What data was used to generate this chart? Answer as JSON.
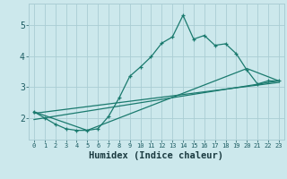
{
  "xlabel": "Humidex (Indice chaleur)",
  "ylabel": "",
  "bg_color": "#cce8ec",
  "line_color": "#1a7a6e",
  "grid_color": "#aacdd4",
  "xlim": [
    -0.5,
    23.5
  ],
  "ylim": [
    1.3,
    5.7
  ],
  "yticks": [
    2,
    3,
    4,
    5
  ],
  "xticks": [
    0,
    1,
    2,
    3,
    4,
    5,
    6,
    7,
    8,
    9,
    10,
    11,
    12,
    13,
    14,
    15,
    16,
    17,
    18,
    19,
    20,
    21,
    22,
    23
  ],
  "xtick_labels": [
    "0",
    "1",
    "2",
    "3",
    "4",
    "5",
    "6",
    "7",
    "8",
    "9",
    "10",
    "11",
    "12",
    "13",
    "14",
    "15",
    "16",
    "17",
    "18",
    "19",
    "20",
    "21",
    "22",
    "23"
  ],
  "series1_x": [
    0,
    1,
    2,
    3,
    4,
    5,
    6,
    7,
    8,
    9,
    10,
    11,
    12,
    13,
    14,
    15,
    16,
    17,
    18,
    19,
    20,
    21,
    22,
    23
  ],
  "series1_y": [
    2.2,
    2.0,
    1.8,
    1.65,
    1.6,
    1.6,
    1.65,
    2.05,
    2.65,
    3.35,
    3.65,
    3.98,
    4.42,
    4.62,
    5.32,
    4.55,
    4.67,
    4.35,
    4.4,
    4.08,
    3.55,
    3.1,
    3.2,
    3.2
  ],
  "series2_x": [
    0,
    23
  ],
  "series2_y": [
    1.95,
    3.2
  ],
  "series3_x": [
    0,
    23
  ],
  "series3_y": [
    2.15,
    3.15
  ],
  "series4_x": [
    0,
    5,
    20,
    23
  ],
  "series4_y": [
    2.2,
    1.6,
    3.6,
    3.2
  ]
}
